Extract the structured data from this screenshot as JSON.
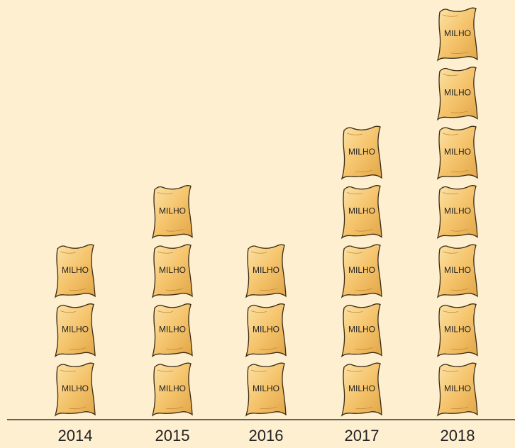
{
  "chart_data": {
    "type": "pictograph",
    "icon_label": "MILHO",
    "categories": [
      "2014",
      "2015",
      "2016",
      "2017",
      "2018"
    ],
    "values": [
      3,
      4,
      3,
      5,
      7
    ],
    "color": "#f5c46c"
  }
}
